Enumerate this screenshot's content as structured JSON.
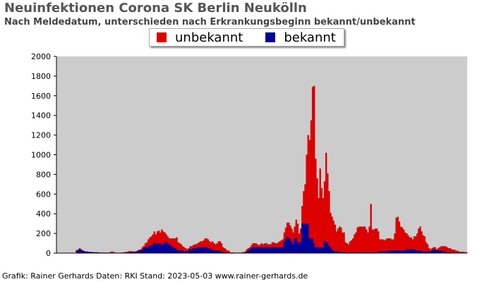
{
  "title": "Neuinfektionen Corona SK Berlin Neukölln",
  "subtitle": "Nach Meldedatum, unterschieden nach Erkrankungsbeginn bekannt/unbekannt",
  "credit": "Grafik: Rainer Gerhards Daten: RKI Stand: 2023-05-03 www.rainer-gerhards.de",
  "legend": [
    {
      "label": "unbekannt",
      "color": "#dd0000"
    },
    {
      "label": "bekannt",
      "color": "#000099"
    }
  ],
  "chart_data": {
    "type": "bar",
    "stacked": true,
    "title": "Neuinfektionen Corona SK Berlin Neukölln",
    "xlabel": "",
    "ylabel": "",
    "ylim": [
      0,
      2000
    ],
    "yticks": [
      0,
      200,
      400,
      600,
      800,
      1000,
      1200,
      1400,
      1600,
      1800,
      2000
    ],
    "grid": false,
    "legend_position": "top-center",
    "background": "#cccccc",
    "series": [
      {
        "name": "unbekannt",
        "color": "#dd0000",
        "values": [
          0,
          0,
          0,
          0,
          0,
          0,
          0,
          0,
          0,
          0,
          0,
          0,
          0,
          5,
          8,
          10,
          5,
          3,
          3,
          2,
          2,
          1,
          1,
          1,
          1,
          1,
          1,
          1,
          1,
          1,
          1,
          1,
          1,
          1,
          1,
          1,
          10,
          10,
          5,
          2,
          1,
          1,
          1,
          2,
          3,
          3,
          5,
          5,
          10,
          10,
          8,
          5,
          5,
          5,
          10,
          10,
          10,
          20,
          25,
          40,
          50,
          70,
          80,
          90,
          100,
          110,
          100,
          120,
          130,
          110,
          150,
          130,
          100,
          70,
          70,
          60,
          70,
          80,
          90,
          100,
          120,
          80,
          70,
          60,
          40,
          40,
          30,
          20,
          20,
          30,
          30,
          30,
          40,
          40,
          40,
          50,
          60,
          60,
          70,
          90,
          90,
          90,
          70,
          70,
          80,
          70,
          60,
          70,
          90,
          100,
          80,
          50,
          40,
          30,
          20,
          20,
          5,
          5,
          5,
          3,
          3,
          3,
          3,
          3,
          5,
          5,
          10,
          20,
          20,
          20,
          30,
          40,
          40,
          40,
          30,
          20,
          30,
          40,
          30,
          40,
          40,
          30,
          30,
          30,
          50,
          50,
          40,
          40,
          50,
          60,
          70,
          80,
          90,
          120,
          140,
          150,
          140,
          130,
          120,
          120,
          180,
          180,
          100,
          130,
          180,
          330,
          400,
          700,
          900,
          1000,
          1200,
          1540,
          1600,
          900,
          700,
          500,
          800,
          600,
          500,
          600,
          900,
          700,
          550,
          350,
          330,
          300,
          270,
          200,
          230,
          250,
          250,
          200,
          200,
          100,
          90,
          80,
          110,
          120,
          140,
          180,
          200,
          250,
          260,
          260,
          260,
          260,
          260,
          230,
          200,
          260,
          490,
          230,
          230,
          240,
          240,
          200,
          120,
          120,
          120,
          110,
          120,
          130,
          120,
          120,
          110,
          110,
          170,
          330,
          340,
          290,
          240,
          230,
          210,
          180,
          160,
          140,
          120,
          120,
          100,
          130,
          140,
          170,
          220,
          240,
          200,
          160,
          150,
          90,
          70,
          30,
          20,
          20,
          20,
          20,
          10,
          20,
          30,
          40,
          50,
          50,
          50,
          50,
          40,
          40,
          30,
          30,
          30,
          20,
          20,
          10,
          10,
          10,
          8,
          5,
          5
        ]
      },
      {
        "name": "bekannt",
        "color": "#000099",
        "values": [
          0,
          0,
          0,
          0,
          0,
          0,
          0,
          0,
          0,
          0,
          0,
          0,
          0,
          25,
          30,
          40,
          35,
          25,
          20,
          15,
          15,
          12,
          12,
          10,
          10,
          8,
          8,
          8,
          6,
          6,
          5,
          5,
          5,
          5,
          5,
          5,
          5,
          5,
          5,
          3,
          3,
          3,
          3,
          5,
          5,
          5,
          8,
          8,
          10,
          10,
          12,
          12,
          12,
          15,
          20,
          25,
          30,
          40,
          50,
          60,
          60,
          70,
          80,
          80,
          90,
          110,
          90,
          100,
          100,
          100,
          90,
          90,
          110,
          120,
          100,
          90,
          80,
          70,
          60,
          50,
          40,
          30,
          30,
          30,
          30,
          20,
          20,
          20,
          30,
          40,
          40,
          50,
          50,
          50,
          60,
          60,
          60,
          60,
          60,
          60,
          60,
          50,
          50,
          40,
          40,
          30,
          30,
          30,
          30,
          20,
          20,
          10,
          10,
          10,
          5,
          5,
          2,
          2,
          2,
          2,
          2,
          2,
          2,
          2,
          5,
          5,
          10,
          20,
          30,
          40,
          50,
          60,
          60,
          60,
          60,
          60,
          60,
          60,
          60,
          60,
          60,
          60,
          60,
          60,
          60,
          60,
          60,
          60,
          60,
          60,
          60,
          60,
          120,
          140,
          170,
          160,
          140,
          120,
          90,
          150,
          160,
          120,
          100,
          120,
          300,
          300,
          300,
          300,
          300,
          150,
          150,
          150,
          100,
          60,
          60,
          60,
          60,
          60,
          60,
          130,
          120,
          110,
          80,
          60,
          40,
          30,
          20,
          20,
          20,
          20,
          10,
          10,
          10,
          10,
          10,
          10,
          10,
          10,
          10,
          10,
          10,
          10,
          10,
          10,
          10,
          10,
          10,
          10,
          10,
          10,
          10,
          10,
          10,
          10,
          10,
          20,
          20,
          20,
          20,
          20,
          20,
          20,
          30,
          30,
          30,
          30,
          30,
          30,
          30,
          30,
          30,
          30,
          30,
          30,
          40,
          40,
          40,
          40,
          40,
          40,
          30,
          30,
          30,
          30,
          20,
          20,
          20,
          20,
          20,
          20,
          20,
          30,
          40,
          40,
          30,
          30,
          30,
          30,
          20,
          20,
          20,
          10,
          10,
          10,
          10,
          5,
          5,
          5,
          5,
          5,
          5,
          5,
          5,
          5,
          5,
          5,
          5,
          5,
          5,
          5,
          3,
          3,
          3,
          3,
          3
        ]
      }
    ]
  }
}
